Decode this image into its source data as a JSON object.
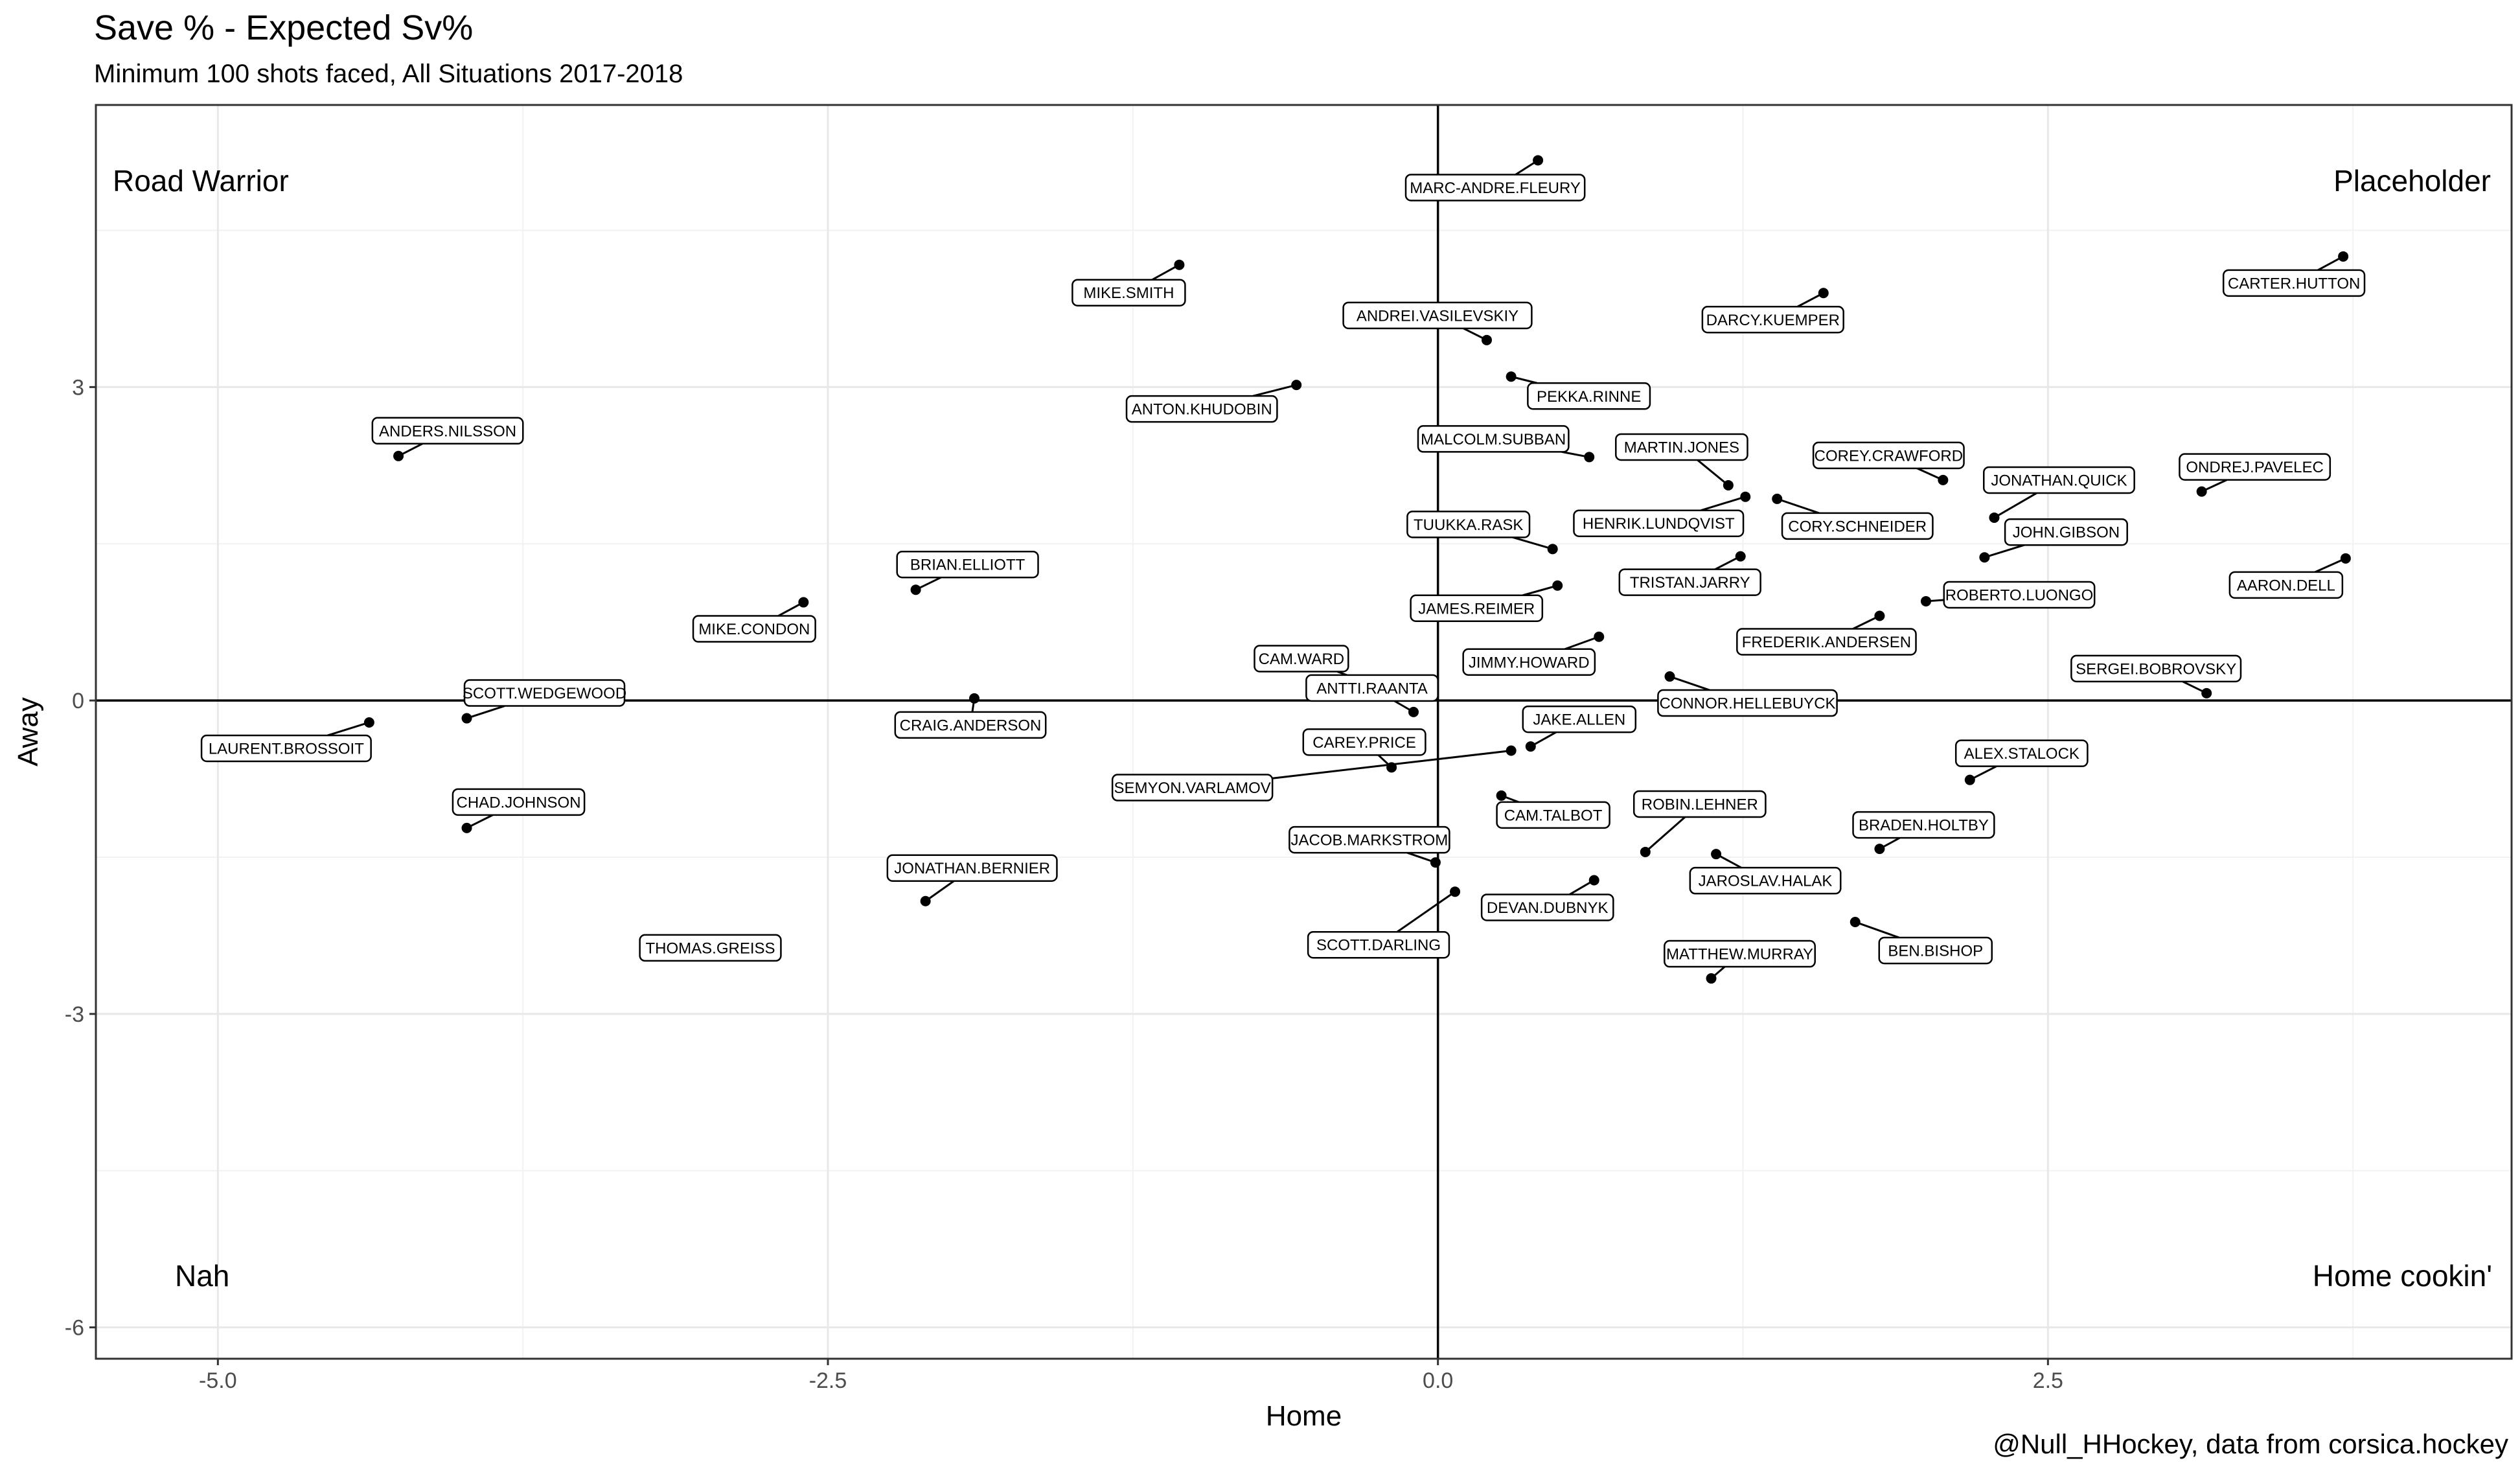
{
  "title": "Save % - Expected Sv%",
  "subtitle": "Minimum 100 shots faced, All Situations 2017-2018",
  "caption": "@Null_HHockey, data from corsica.hockey",
  "chart_data": {
    "type": "scatter",
    "title": "Save % - Expected Sv%",
    "subtitle": "Minimum 100 shots faced, All Situations 2017-2018",
    "xlabel": "Home",
    "ylabel": "Away",
    "xlim": [
      -5.5,
      4.4
    ],
    "ylim": [
      -6.3,
      5.7
    ],
    "x_ticks": [
      -5.0,
      -2.5,
      0.0,
      2.5
    ],
    "x_tick_labels": [
      "-5.0",
      "-2.5",
      "0.0",
      "2.5"
    ],
    "y_ticks": [
      -6,
      -3,
      0,
      3
    ],
    "y_tick_labels": [
      "-6",
      "-3",
      "0",
      "3"
    ],
    "grid": true,
    "reference_lines": {
      "x": 0,
      "y": 0
    },
    "quadrant_labels": {
      "top_left": "Road Warrior",
      "top_right": "Placeholder",
      "bottom_left": "Nah",
      "bottom_right": "Home cookin'"
    },
    "points": [
      {
        "name": "MARC-ANDRE.FLEURY",
        "x": 0.41,
        "y": 5.17
      },
      {
        "name": "MIKE.SMITH",
        "x": -1.06,
        "y": 4.17
      },
      {
        "name": "CARTER.HUTTON",
        "x": 3.71,
        "y": 4.25
      },
      {
        "name": "DARCY.KUEMPER",
        "x": 1.58,
        "y": 3.9
      },
      {
        "name": "ANDREI.VASILEVSKIY",
        "x": 0.2,
        "y": 3.45
      },
      {
        "name": "PEKKA.RINNE",
        "x": 0.3,
        "y": 3.1
      },
      {
        "name": "ANTON.KHUDOBIN",
        "x": -0.58,
        "y": 3.02
      },
      {
        "name": "ANDERS.NILSSON",
        "x": -4.26,
        "y": 2.34
      },
      {
        "name": "MALCOLM.SUBBAN",
        "x": 0.62,
        "y": 2.33
      },
      {
        "name": "COREY.CRAWFORD",
        "x": 2.07,
        "y": 2.11
      },
      {
        "name": "MARTIN.JONES",
        "x": 1.19,
        "y": 2.06
      },
      {
        "name": "ONDREJ.PAVELEC",
        "x": 3.13,
        "y": 2.0
      },
      {
        "name": "HENRIK.LUNDQVIST",
        "x": 1.26,
        "y": 1.95
      },
      {
        "name": "CORY.SCHNEIDER",
        "x": 1.39,
        "y": 1.93
      },
      {
        "name": "JONATHAN.QUICK",
        "x": 2.28,
        "y": 1.75
      },
      {
        "name": "TUUKKA.RASK",
        "x": 0.47,
        "y": 1.45
      },
      {
        "name": "JOHN.GIBSON",
        "x": 2.24,
        "y": 1.37
      },
      {
        "name": "AARON.DELL",
        "x": 3.72,
        "y": 1.36
      },
      {
        "name": "TRISTAN.JARRY",
        "x": 1.24,
        "y": 1.38
      },
      {
        "name": "BRIAN.ELLIOTT",
        "x": -2.14,
        "y": 1.06
      },
      {
        "name": "JAMES.REIMER",
        "x": 0.49,
        "y": 1.1
      },
      {
        "name": "MIKE.CONDON",
        "x": -2.6,
        "y": 0.94
      },
      {
        "name": "ROBERTO.LUONGO",
        "x": 2.0,
        "y": 0.95
      },
      {
        "name": "FREDERIK.ANDERSEN",
        "x": 1.81,
        "y": 0.81
      },
      {
        "name": "JIMMY.HOWARD",
        "x": 0.66,
        "y": 0.61
      },
      {
        "name": "CONNOR.HELLEBUYCK",
        "x": 0.95,
        "y": 0.23
      },
      {
        "name": "CAM.WARD",
        "x": -0.31,
        "y": 0.19
      },
      {
        "name": "SERGEI.BOBROVSKY",
        "x": 3.15,
        "y": 0.07
      },
      {
        "name": "CRAIG.ANDERSON",
        "x": -1.9,
        "y": 0.02
      },
      {
        "name": "ANTTI.RAANTA",
        "x": -0.1,
        "y": -0.11
      },
      {
        "name": "LAURENT.BROSSOIT",
        "x": -4.38,
        "y": -0.21
      },
      {
        "name": "SCOTT.WEDGEWOOD",
        "x": -3.98,
        "y": -0.17
      },
      {
        "name": "JAKE.ALLEN",
        "x": 0.38,
        "y": -0.44
      },
      {
        "name": "SEMYON.VARLAMOV",
        "x": 0.3,
        "y": -0.48
      },
      {
        "name": "CAREY.PRICE",
        "x": -0.19,
        "y": -0.64
      },
      {
        "name": "ALEX.STALOCK",
        "x": 2.18,
        "y": -0.76
      },
      {
        "name": "CAM.TALBOT",
        "x": 0.26,
        "y": -0.91
      },
      {
        "name": "CHAD.JOHNSON",
        "x": -3.98,
        "y": -1.22
      },
      {
        "name": "ROBIN.LEHNER",
        "x": 0.85,
        "y": -1.45
      },
      {
        "name": "BRADEN.HOLTBY",
        "x": 1.81,
        "y": -1.42
      },
      {
        "name": "JAROSLAV.HALAK",
        "x": 1.14,
        "y": -1.47
      },
      {
        "name": "JACOB.MARKSTROM",
        "x": -0.01,
        "y": -1.55
      },
      {
        "name": "DEVAN.DUBNYK",
        "x": 0.64,
        "y": -1.72
      },
      {
        "name": "SCOTT.DARLING",
        "x": 0.07,
        "y": -1.83
      },
      {
        "name": "JONATHAN.BERNIER",
        "x": -2.1,
        "y": -1.92
      },
      {
        "name": "BEN.BISHOP",
        "x": 1.71,
        "y": -2.12
      },
      {
        "name": "THOMAS.GREISS",
        "x": -2.78,
        "y": -2.38
      },
      {
        "name": "MATTHEW.MURRAY",
        "x": 1.12,
        "y": -2.66
      }
    ]
  }
}
